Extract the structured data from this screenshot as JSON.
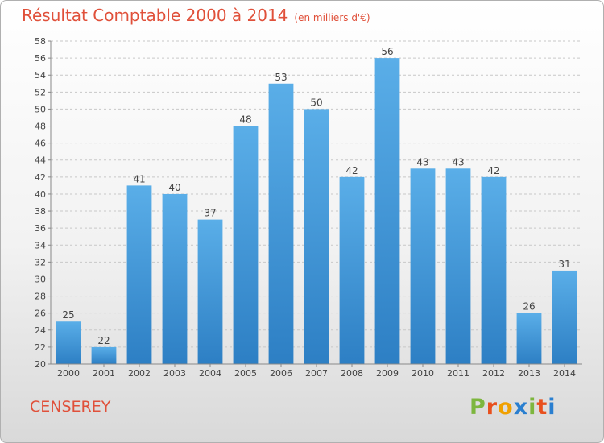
{
  "header": {
    "title": "Résultat Comptable 2000 à 2014",
    "subtitle": "(en milliers d'€)"
  },
  "footer": {
    "place": "CENSEREY",
    "brand": "Proxiti",
    "brand_colors": [
      "#7db63e",
      "#e8501e",
      "#f0a000",
      "#2a7fd0",
      "#7db63e",
      "#e8501e",
      "#2a7fd0"
    ]
  },
  "colors": {
    "bar_light": "#5aaee8",
    "bar_dark": "#2d7fc4",
    "accent": "#e0503a"
  },
  "chart_data": {
    "type": "bar",
    "title": "Résultat Comptable 2000 à 2014",
    "subtitle": "(en milliers d'€)",
    "xlabel": "",
    "ylabel": "",
    "categories": [
      "2000",
      "2001",
      "2002",
      "2003",
      "2004",
      "2005",
      "2006",
      "2007",
      "2008",
      "2009",
      "2010",
      "2011",
      "2012",
      "2013",
      "2014"
    ],
    "values": [
      25,
      22,
      41,
      40,
      37,
      48,
      53,
      50,
      42,
      56,
      43,
      43,
      42,
      26,
      31
    ],
    "ylim": [
      20,
      58
    ],
    "yticks": [
      20,
      22,
      24,
      26,
      28,
      30,
      32,
      34,
      36,
      38,
      40,
      42,
      44,
      46,
      48,
      50,
      52,
      54,
      56,
      58
    ],
    "grid": "horizontal-dashed",
    "legend": "none"
  }
}
